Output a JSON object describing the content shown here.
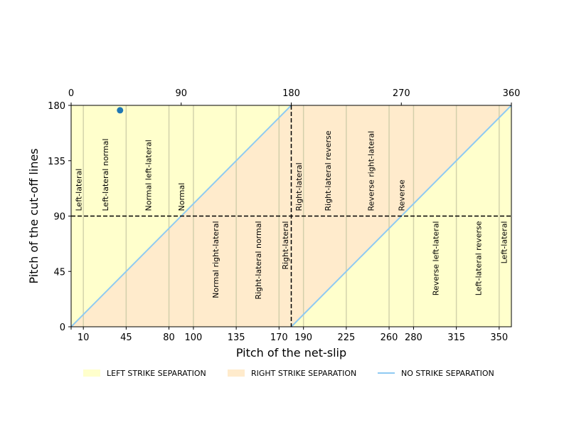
{
  "chart_data": {
    "type": "line",
    "xlabel": "Pitch of the net-slip",
    "ylabel": "Pitch of the cut-off lines",
    "xlim": [
      0,
      360
    ],
    "ylim": [
      0,
      180
    ],
    "bottom_ticks": [
      10,
      45,
      80,
      100,
      135,
      170,
      190,
      225,
      260,
      280,
      315,
      350
    ],
    "top_ticks": [
      0,
      90,
      180,
      270,
      360
    ],
    "y_ticks": [
      0,
      45,
      90,
      135,
      180
    ],
    "vertical_gridlines": [
      10,
      45,
      80,
      100,
      135,
      170,
      190,
      225,
      260,
      280,
      315,
      350
    ],
    "reference_lines": {
      "x": 180,
      "y": 90
    },
    "regions": [
      {
        "name": "LEFT STRIKE SEPARATION",
        "color": "#ffffcc",
        "polygons": [
          [
            [
              0,
              0
            ],
            [
              0,
              180
            ],
            [
              180,
              180
            ]
          ],
          [
            [
              180,
              0
            ],
            [
              360,
              180
            ],
            [
              360,
              0
            ]
          ]
        ]
      },
      {
        "name": "RIGHT STRIKE SEPARATION",
        "color": "#ffebcc",
        "polygons": [
          [
            [
              0,
              0
            ],
            [
              180,
              180
            ],
            [
              180,
              0
            ]
          ],
          [
            [
              180,
              0
            ],
            [
              180,
              180
            ],
            [
              360,
              180
            ]
          ]
        ]
      }
    ],
    "series": [
      {
        "name": "NO STRIKE SEPARATION",
        "color": "#8fcaf2",
        "segments": [
          [
            [
              0,
              0
            ],
            [
              180,
              180
            ]
          ],
          [
            [
              180,
              0
            ],
            [
              360,
              180
            ]
          ]
        ]
      }
    ],
    "points": [
      {
        "x": 40,
        "y": 176,
        "color": "#1f77b4"
      }
    ],
    "annotations": [
      {
        "text": "Left-lateral",
        "x": 6,
        "y": 90,
        "anchor": "start"
      },
      {
        "text": "Left-lateral normal",
        "x": 28,
        "y": 90,
        "anchor": "start"
      },
      {
        "text": "Normal left-lateral",
        "x": 63,
        "y": 90,
        "anchor": "start"
      },
      {
        "text": "Normal",
        "x": 90,
        "y": 90,
        "anchor": "start"
      },
      {
        "text": "Right-lateral",
        "x": 186,
        "y": 90,
        "anchor": "start"
      },
      {
        "text": "Right-lateral reverse",
        "x": 210,
        "y": 90,
        "anchor": "start"
      },
      {
        "text": "Reverse right-lateral",
        "x": 245,
        "y": 90,
        "anchor": "start"
      },
      {
        "text": "Reverse",
        "x": 270,
        "y": 90,
        "anchor": "start"
      },
      {
        "text": "Normal right-lateral",
        "x": 118,
        "y": 90,
        "anchor": "end"
      },
      {
        "text": "Right-lateral normal",
        "x": 153,
        "y": 90,
        "anchor": "end"
      },
      {
        "text": "Right-lateral",
        "x": 175,
        "y": 90,
        "anchor": "end"
      },
      {
        "text": "Reverse left-lateral",
        "x": 298,
        "y": 90,
        "anchor": "end"
      },
      {
        "text": "Left-lateral reverse",
        "x": 333,
        "y": 90,
        "anchor": "end"
      },
      {
        "text": "Left-lateral",
        "x": 354,
        "y": 90,
        "anchor": "end"
      }
    ],
    "legend": {
      "position": "bottom",
      "entries": [
        {
          "label": "LEFT STRIKE SEPARATION",
          "kind": "patch",
          "color": "#ffffcc"
        },
        {
          "label": "RIGHT STRIKE SEPARATION",
          "kind": "patch",
          "color": "#ffebcc"
        },
        {
          "label": "NO STRIKE SEPARATION",
          "kind": "line",
          "color": "#8fcaf2"
        }
      ]
    }
  }
}
